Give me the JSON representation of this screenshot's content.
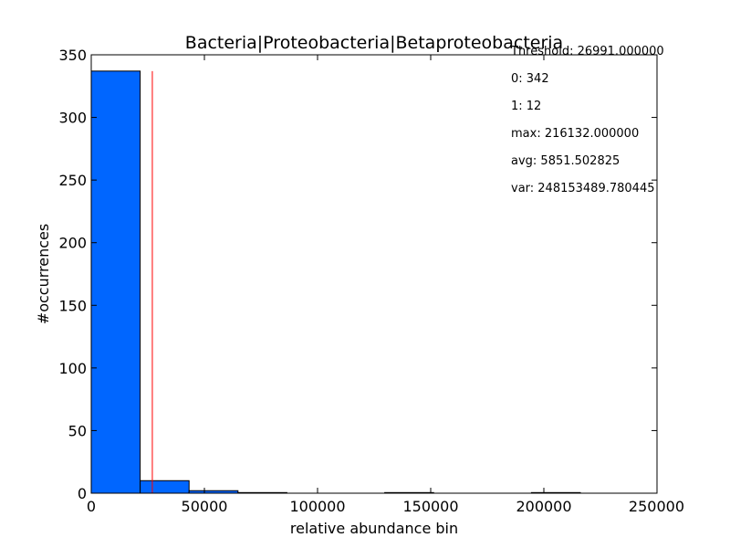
{
  "chart_data": {
    "type": "bar",
    "title": "Bacteria|Proteobacteria|Betaproteobacteria",
    "xlabel": "relative abundance bin",
    "ylabel": "#occurrences",
    "xlim": [
      0,
      250000
    ],
    "ylim": [
      0,
      350
    ],
    "xticks": [
      0,
      50000,
      100000,
      150000,
      200000,
      250000
    ],
    "yticks": [
      0,
      50,
      100,
      150,
      200,
      250,
      300,
      350
    ],
    "bins": [
      {
        "x0": 0,
        "x1": 21613,
        "value": 337
      },
      {
        "x0": 21613,
        "x1": 43226,
        "value": 10
      },
      {
        "x0": 43226,
        "x1": 64840,
        "value": 2
      },
      {
        "x0": 64840,
        "x1": 86453,
        "value": 0.5
      },
      {
        "x0": 86453,
        "x1": 108066,
        "value": 0
      },
      {
        "x0": 108066,
        "x1": 129679,
        "value": 0
      },
      {
        "x0": 129679,
        "x1": 151292,
        "value": 0.5
      },
      {
        "x0": 151292,
        "x1": 172906,
        "value": 0
      },
      {
        "x0": 172906,
        "x1": 194519,
        "value": 0
      },
      {
        "x0": 194519,
        "x1": 216132,
        "value": 0.5
      }
    ],
    "threshold_value": 26991,
    "threshold_ymax": 337,
    "grid": false,
    "colors": {
      "bar_fill": "#0066ff",
      "bar_edge": "#000000",
      "threshold_line": "#ff0000",
      "axes": "#000000"
    },
    "annotations": [
      "Threshold: 26991.000000",
      "0: 342",
      "1: 12",
      "max: 216132.000000",
      "avg: 5851.502825",
      "var: 248153489.780445"
    ]
  }
}
